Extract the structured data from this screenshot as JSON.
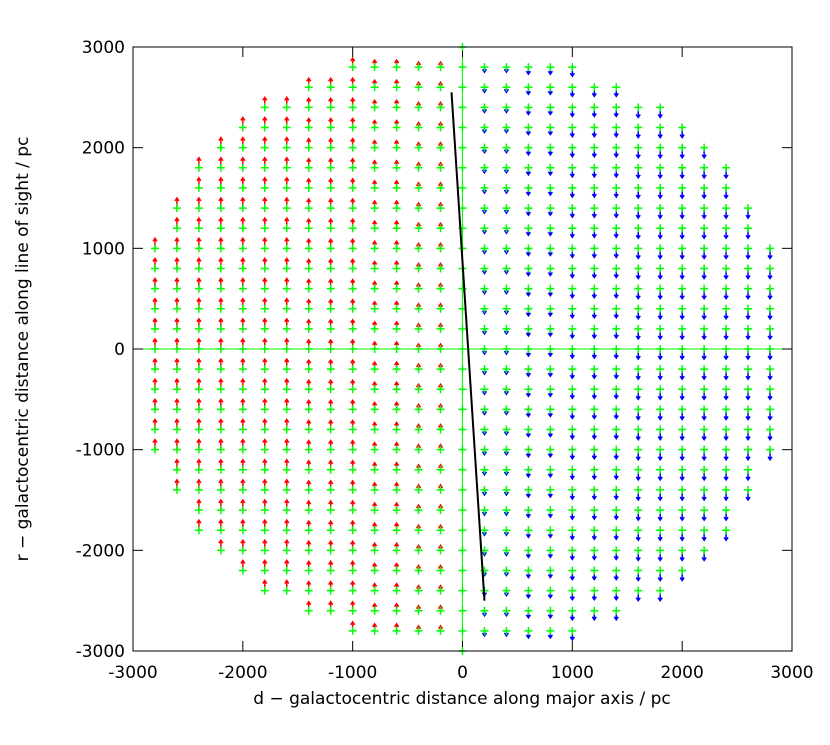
{
  "chart_data": {
    "type": "quiver",
    "xlabel": "d − galactocentric distance along major axis / pc",
    "ylabel": "r − galactocentric distance along line of sight / pc",
    "xlim": [
      -3000,
      3000
    ],
    "ylim": [
      -3000,
      3000
    ],
    "xticks": [
      -3000,
      -2000,
      -1000,
      0,
      1000,
      2000,
      3000
    ],
    "yticks": [
      -3000,
      -2000,
      -1000,
      0,
      1000,
      2000,
      3000
    ],
    "positive_color": "#ff0000",
    "negative_color": "#0000ff",
    "marker_color": "#00ff00",
    "axis_line_color": "#00ff00",
    "line": {
      "x": [
        -100,
        200
      ],
      "y": [
        2550,
        -2500
      ],
      "color": "#000000"
    },
    "columns": [
      {
        "x": -2800,
        "v": 100,
        "y": [
          -1000,
          -800,
          -600,
          -400,
          -200,
          0,
          200,
          400,
          600,
          800,
          1000
        ]
      },
      {
        "x": -2600,
        "v": 100,
        "y": [
          -1400,
          -1200,
          -1000,
          -800,
          -600,
          -400,
          -200,
          0,
          200,
          400,
          600,
          800,
          1000,
          1200,
          1400
        ]
      },
      {
        "x": -2400,
        "v": 100,
        "y": [
          -1800,
          -1600,
          -1400,
          -1200,
          -1000,
          -800,
          -600,
          -400,
          -200,
          0,
          200,
          400,
          600,
          800,
          1000,
          1200,
          1400,
          1600,
          1800
        ]
      },
      {
        "x": -2200,
        "v": 100,
        "y": [
          -2000,
          -1800,
          -1600,
          -1400,
          -1200,
          -1000,
          -800,
          -600,
          -400,
          -200,
          0,
          200,
          400,
          600,
          800,
          1000,
          1200,
          1400,
          1600,
          1800,
          2000
        ]
      },
      {
        "x": -2000,
        "v": 100,
        "y": [
          -2200,
          -2000,
          -1800,
          -1600,
          -1400,
          -1200,
          -1000,
          -800,
          -600,
          -400,
          -200,
          0,
          200,
          400,
          600,
          800,
          1000,
          1200,
          1400,
          1600,
          1800,
          2000,
          2200
        ]
      },
      {
        "x": -1800,
        "v": 100,
        "y": [
          -2400,
          -2200,
          -2000,
          -1800,
          -1600,
          -1400,
          -1200,
          -1000,
          -800,
          -600,
          -400,
          -200,
          0,
          200,
          400,
          600,
          800,
          1000,
          1200,
          1400,
          1600,
          1800,
          2000,
          2200,
          2400
        ]
      },
      {
        "x": -1600,
        "v": 100,
        "y": [
          -2400,
          -2200,
          -2000,
          -1800,
          -1600,
          -1400,
          -1200,
          -1000,
          -800,
          -600,
          -400,
          -200,
          0,
          200,
          400,
          600,
          800,
          1000,
          1200,
          1400,
          1600,
          1800,
          2000,
          2200,
          2400
        ]
      },
      {
        "x": -1400,
        "v": 90,
        "y": [
          -2600,
          -2400,
          -2200,
          -2000,
          -1800,
          -1600,
          -1400,
          -1200,
          -1000,
          -800,
          -600,
          -400,
          -200,
          0,
          200,
          400,
          600,
          800,
          1000,
          1200,
          1400,
          1600,
          1800,
          2000,
          2200,
          2400,
          2600
        ]
      },
      {
        "x": -1200,
        "v": 90,
        "y": [
          -2600,
          -2400,
          -2200,
          -2000,
          -1800,
          -1600,
          -1400,
          -1200,
          -1000,
          -800,
          -600,
          -400,
          -200,
          0,
          200,
          400,
          600,
          800,
          1000,
          1200,
          1400,
          1600,
          1800,
          2000,
          2200,
          2400,
          2600
        ]
      },
      {
        "x": -1000,
        "v": 90,
        "y": [
          -2800,
          -2600,
          -2400,
          -2200,
          -2000,
          -1800,
          -1600,
          -1400,
          -1200,
          -1000,
          -800,
          -600,
          -400,
          -200,
          0,
          200,
          400,
          600,
          800,
          1000,
          1200,
          1400,
          1600,
          1800,
          2000,
          2200,
          2400,
          2600,
          2800
        ]
      },
      {
        "x": -800,
        "v": 70,
        "y": [
          -2800,
          -2600,
          -2400,
          -2200,
          -2000,
          -1800,
          -1600,
          -1400,
          -1200,
          -1000,
          -800,
          -600,
          -400,
          -200,
          0,
          200,
          400,
          600,
          800,
          1000,
          1200,
          1400,
          1600,
          1800,
          2000,
          2200,
          2400,
          2600,
          2800
        ]
      },
      {
        "x": -600,
        "v": 70,
        "y": [
          -2800,
          -2600,
          -2400,
          -2200,
          -2000,
          -1800,
          -1600,
          -1400,
          -1200,
          -1000,
          -800,
          -600,
          -400,
          -200,
          0,
          200,
          400,
          600,
          800,
          1000,
          1200,
          1400,
          1600,
          1800,
          2000,
          2200,
          2400,
          2600,
          2800
        ]
      },
      {
        "x": -400,
        "v": 50,
        "y": [
          -2800,
          -2600,
          -2400,
          -2200,
          -2000,
          -1800,
          -1600,
          -1400,
          -1200,
          -1000,
          -800,
          -600,
          -400,
          -200,
          0,
          200,
          400,
          600,
          800,
          1000,
          1200,
          1400,
          1600,
          1800,
          2000,
          2200,
          2400,
          2600,
          2800
        ]
      },
      {
        "x": -200,
        "v": 50,
        "y": [
          -2800,
          -2600,
          -2400,
          -2200,
          -2000,
          -1800,
          -1600,
          -1400,
          -1200,
          -1000,
          -800,
          -600,
          -400,
          -200,
          0,
          200,
          400,
          600,
          800,
          1000,
          1200,
          1400,
          1600,
          1800,
          2000,
          2200,
          2400,
          2600,
          2800
        ]
      },
      {
        "x": 0,
        "v": 0,
        "y": [
          -3000,
          -2800,
          -2600,
          -2400,
          -2200,
          -2000,
          -1800,
          -1600,
          -1400,
          -1200,
          -1000,
          -800,
          -600,
          -400,
          -200,
          0,
          200,
          400,
          600,
          800,
          1000,
          1200,
          1400,
          1600,
          1800,
          2000,
          2200,
          2400,
          2600,
          2800,
          3000
        ]
      },
      {
        "x": 200,
        "v": -50,
        "y": [
          -2800,
          -2600,
          -2400,
          -2200,
          -2000,
          -1800,
          -1600,
          -1400,
          -1200,
          -1000,
          -800,
          -600,
          -400,
          -200,
          0,
          200,
          400,
          600,
          800,
          1000,
          1200,
          1400,
          1600,
          1800,
          2000,
          2200,
          2400,
          2600,
          2800
        ]
      },
      {
        "x": 400,
        "v": -50,
        "y": [
          -2800,
          -2600,
          -2400,
          -2200,
          -2000,
          -1800,
          -1600,
          -1400,
          -1200,
          -1000,
          -800,
          -600,
          -400,
          -200,
          0,
          200,
          400,
          600,
          800,
          1000,
          1200,
          1400,
          1600,
          1800,
          2000,
          2200,
          2400,
          2600,
          2800
        ]
      },
      {
        "x": 600,
        "v": -70,
        "y": [
          -2800,
          -2600,
          -2400,
          -2200,
          -2000,
          -1800,
          -1600,
          -1400,
          -1200,
          -1000,
          -800,
          -600,
          -400,
          -200,
          0,
          200,
          400,
          600,
          800,
          1000,
          1200,
          1400,
          1600,
          1800,
          2000,
          2200,
          2400,
          2600,
          2800
        ]
      },
      {
        "x": 800,
        "v": -70,
        "y": [
          -2800,
          -2600,
          -2400,
          -2200,
          -2000,
          -1800,
          -1600,
          -1400,
          -1200,
          -1000,
          -800,
          -600,
          -400,
          -200,
          0,
          200,
          400,
          600,
          800,
          1000,
          1200,
          1400,
          1600,
          1800,
          2000,
          2200,
          2400,
          2600,
          2800
        ]
      },
      {
        "x": 1000,
        "v": -90,
        "y": [
          -2800,
          -2600,
          -2400,
          -2200,
          -2000,
          -1800,
          -1600,
          -1400,
          -1200,
          -1000,
          -800,
          -600,
          -400,
          -200,
          0,
          200,
          400,
          600,
          800,
          1000,
          1200,
          1400,
          1600,
          1800,
          2000,
          2200,
          2400,
          2600,
          2800
        ]
      },
      {
        "x": 1200,
        "v": -90,
        "y": [
          -2600,
          -2400,
          -2200,
          -2000,
          -1800,
          -1600,
          -1400,
          -1200,
          -1000,
          -800,
          -600,
          -400,
          -200,
          0,
          200,
          400,
          600,
          800,
          1000,
          1200,
          1400,
          1600,
          1800,
          2000,
          2200,
          2400,
          2600
        ]
      },
      {
        "x": 1400,
        "v": -90,
        "y": [
          -2600,
          -2400,
          -2200,
          -2000,
          -1800,
          -1600,
          -1400,
          -1200,
          -1000,
          -800,
          -600,
          -400,
          -200,
          0,
          200,
          400,
          600,
          800,
          1000,
          1200,
          1400,
          1600,
          1800,
          2000,
          2200,
          2400,
          2600
        ]
      },
      {
        "x": 1600,
        "v": -100,
        "y": [
          -2400,
          -2200,
          -2000,
          -1800,
          -1600,
          -1400,
          -1200,
          -1000,
          -800,
          -600,
          -400,
          -200,
          0,
          200,
          400,
          600,
          800,
          1000,
          1200,
          1400,
          1600,
          1800,
          2000,
          2200,
          2400
        ]
      },
      {
        "x": 1800,
        "v": -100,
        "y": [
          -2400,
          -2200,
          -2000,
          -1800,
          -1600,
          -1400,
          -1200,
          -1000,
          -800,
          -600,
          -400,
          -200,
          0,
          200,
          400,
          600,
          800,
          1000,
          1200,
          1400,
          1600,
          1800,
          2000,
          2200,
          2400
        ]
      },
      {
        "x": 2000,
        "v": -100,
        "y": [
          -2200,
          -2000,
          -1800,
          -1600,
          -1400,
          -1200,
          -1000,
          -800,
          -600,
          -400,
          -200,
          0,
          200,
          400,
          600,
          800,
          1000,
          1200,
          1400,
          1600,
          1800,
          2000,
          2200
        ]
      },
      {
        "x": 2200,
        "v": -100,
        "y": [
          -2000,
          -1800,
          -1600,
          -1400,
          -1200,
          -1000,
          -800,
          -600,
          -400,
          -200,
          0,
          200,
          400,
          600,
          800,
          1000,
          1200,
          1400,
          1600,
          1800,
          2000
        ]
      },
      {
        "x": 2400,
        "v": -100,
        "y": [
          -1800,
          -1600,
          -1400,
          -1200,
          -1000,
          -800,
          -600,
          -400,
          -200,
          0,
          200,
          400,
          600,
          800,
          1000,
          1200,
          1400,
          1600,
          1800
        ]
      },
      {
        "x": 2600,
        "v": -100,
        "y": [
          -1400,
          -1200,
          -1000,
          -800,
          -600,
          -400,
          -200,
          0,
          200,
          400,
          600,
          800,
          1000,
          1200,
          1400
        ]
      },
      {
        "x": 2800,
        "v": -100,
        "y": [
          -1000,
          -800,
          -600,
          -400,
          -200,
          0,
          200,
          400,
          600,
          800,
          1000
        ]
      }
    ]
  }
}
